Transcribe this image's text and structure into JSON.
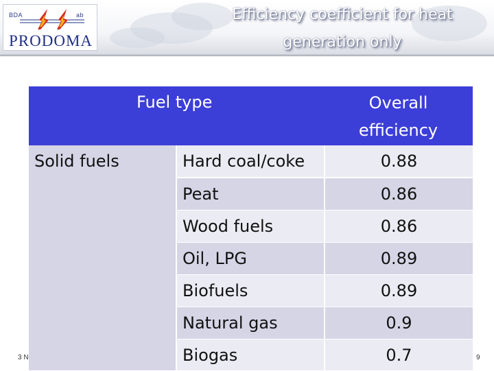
{
  "slide": {
    "title_line1": "Efficiency coefficient for heat",
    "title_line2": "generation only",
    "footer_left": "3 N",
    "page_number": "9"
  },
  "logo": {
    "top_left_text": "BDA",
    "top_right_text": "ab",
    "name": "PRODOMA",
    "colors": {
      "primary": "#1e2f86",
      "flame_red": "#d22a1e",
      "flame_yellow": "#f2b21b"
    }
  },
  "table": {
    "header_fuel_type": "Fuel type",
    "header_efficiency_line1": "Overall",
    "header_efficiency_line2": "efficiency",
    "group_label": "Solid fuels",
    "rows": [
      {
        "fuel": "Hard coal/coke",
        "efficiency": "0.88"
      },
      {
        "fuel": "Peat",
        "efficiency": "0.86"
      },
      {
        "fuel": "Wood fuels",
        "efficiency": "0.86"
      },
      {
        "fuel": "Oil, LPG",
        "efficiency": "0.89"
      },
      {
        "fuel": "Biofuels",
        "efficiency": "0.89"
      },
      {
        "fuel": "Natural gas",
        "efficiency": "0.9"
      },
      {
        "fuel": "Biogas",
        "efficiency": "0.7"
      }
    ],
    "colors": {
      "header": "#3c3ed8",
      "band_dark": "#d5d5e6",
      "band_light": "#ebebf3"
    }
  }
}
